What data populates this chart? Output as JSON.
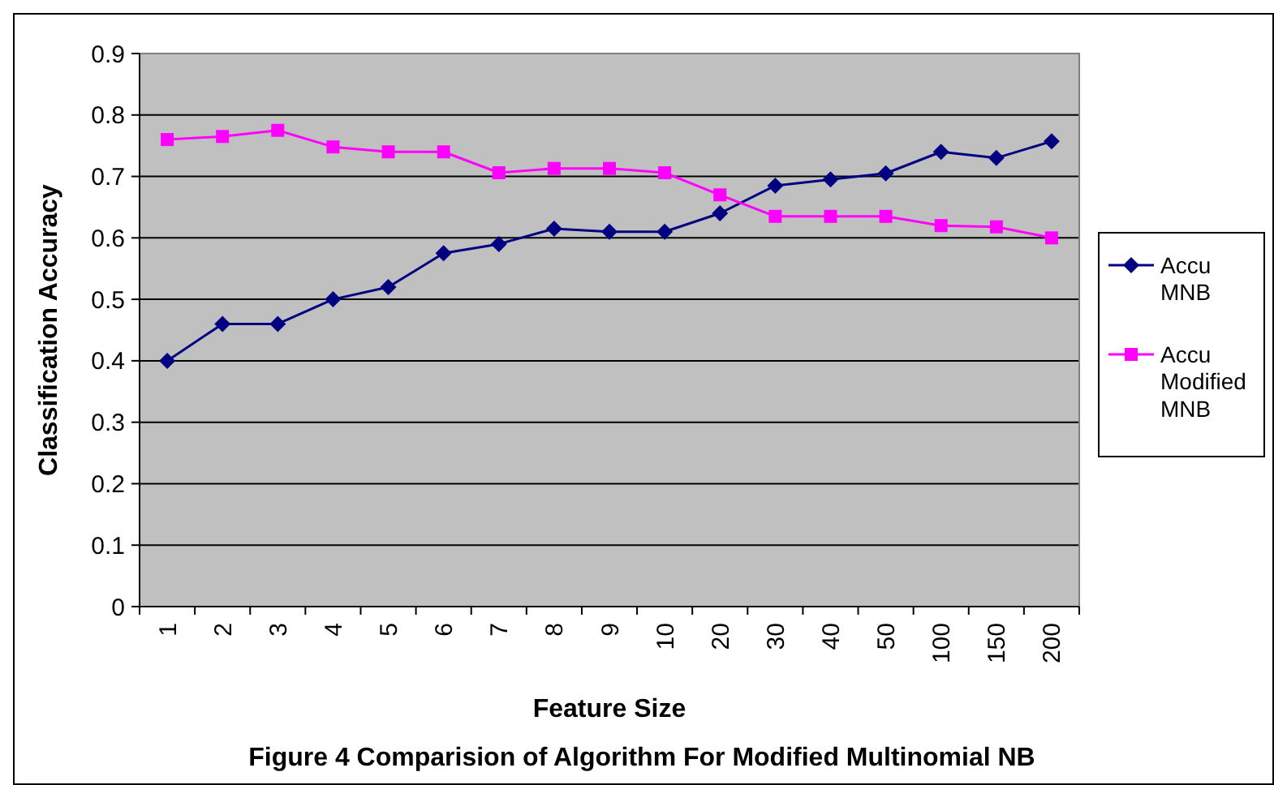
{
  "chart_data": {
    "type": "line",
    "xlabel": "Feature Size",
    "ylabel": "Classification Accuracy",
    "categories": [
      "1",
      "2",
      "3",
      "4",
      "5",
      "6",
      "7",
      "8",
      "9",
      "10",
      "20",
      "30",
      "40",
      "50",
      "100",
      "150",
      "200"
    ],
    "series": [
      {
        "name": "Accu MNB",
        "color": "#000080",
        "marker": "diamond",
        "values": [
          0.4,
          0.46,
          0.46,
          0.5,
          0.52,
          0.575,
          0.59,
          0.615,
          0.61,
          0.61,
          0.64,
          0.685,
          0.695,
          0.705,
          0.74,
          0.73,
          0.757
        ]
      },
      {
        "name": "Accu Modified MNB",
        "color": "#ff00ff",
        "marker": "square",
        "values": [
          0.76,
          0.765,
          0.775,
          0.748,
          0.74,
          0.74,
          0.706,
          0.713,
          0.713,
          0.706,
          0.67,
          0.635,
          0.635,
          0.635,
          0.62,
          0.618,
          0.6
        ]
      }
    ],
    "ylim": [
      0,
      0.9
    ],
    "yticks": [
      0,
      0.1,
      0.2,
      0.3,
      0.4,
      0.5,
      0.6,
      0.7,
      0.8,
      0.9
    ],
    "grid": "y",
    "legend": "right",
    "annotations": [
      "Figure 4 Comparision of Algorithm For Modified Multinomial NB"
    ]
  }
}
